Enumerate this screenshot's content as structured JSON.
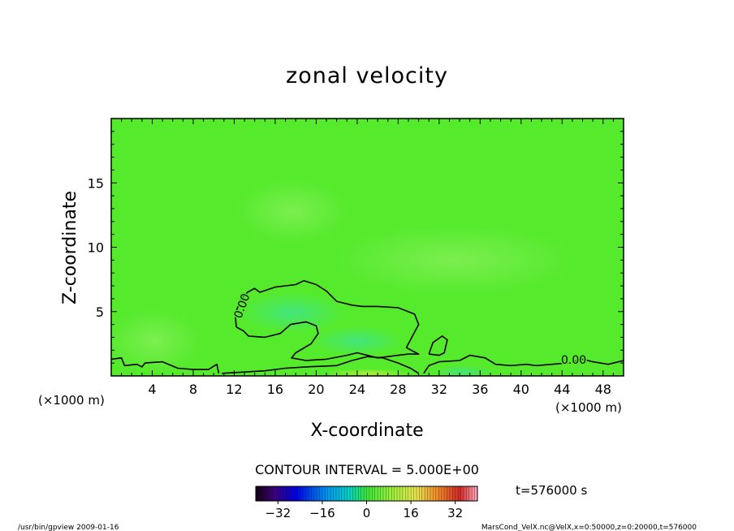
{
  "chart_data": {
    "type": "heatmap",
    "title": "zonal velocity",
    "xlabel": "X-coordinate",
    "ylabel": "Z-coordinate",
    "x_unit_label": "(×1000 m)",
    "xlim": [
      0,
      50
    ],
    "ylim": [
      0,
      20
    ],
    "x_ticks": [
      4,
      8,
      12,
      16,
      20,
      24,
      28,
      32,
      36,
      40,
      44,
      48
    ],
    "y_ticks": [
      5,
      10,
      15
    ],
    "contour_label": "0.00",
    "contour_interval_text": "CONTOUR INTERVAL = 5.000E+00",
    "colorbar": {
      "range": [
        -40,
        40
      ],
      "ticks": [
        -32,
        -16,
        0,
        16,
        32
      ]
    },
    "contour_zero": [
      [
        [
          0,
          1.3
        ],
        [
          1,
          1.4
        ],
        [
          1.3,
          0.8
        ],
        [
          2.5,
          0.9
        ],
        [
          3,
          0.7
        ],
        [
          3.3,
          1.0
        ],
        [
          5,
          1.1
        ],
        [
          6.5,
          0.6
        ],
        [
          8,
          0.5
        ],
        [
          9.5,
          0.5
        ],
        [
          10.3,
          0.9
        ],
        [
          10.5,
          0.2
        ]
      ],
      [
        [
          12.2,
          3.8
        ],
        [
          12.1,
          4.8
        ],
        [
          12.6,
          5.9
        ],
        [
          13.3,
          6.5
        ],
        [
          14,
          6.8
        ],
        [
          14.5,
          6.5
        ],
        [
          16,
          6.9
        ],
        [
          18,
          7.1
        ],
        [
          18.8,
          7.4
        ],
        [
          20,
          7.1
        ],
        [
          21,
          6.6
        ],
        [
          22,
          5.8
        ],
        [
          23.5,
          5.5
        ],
        [
          24.5,
          5.4
        ],
        [
          26,
          5.4
        ],
        [
          28,
          5.3
        ],
        [
          29.6,
          4.8
        ],
        [
          30,
          4.0
        ],
        [
          29.4,
          3.1
        ],
        [
          28.8,
          2.2
        ],
        [
          29.5,
          1.9
        ],
        [
          30,
          1.7
        ],
        [
          29,
          1.7
        ],
        [
          28,
          1.6
        ],
        [
          26,
          1.4
        ],
        [
          24,
          1.8
        ],
        [
          23,
          1.6
        ],
        [
          21,
          1.3
        ],
        [
          19,
          1.2
        ],
        [
          17.6,
          1.4
        ],
        [
          18,
          1.8
        ],
        [
          19.5,
          2.5
        ],
        [
          20.2,
          3.3
        ],
        [
          20,
          3.9
        ],
        [
          19,
          4.2
        ],
        [
          17.5,
          4.0
        ],
        [
          16.5,
          3.3
        ],
        [
          15,
          3.0
        ],
        [
          13.4,
          3.1
        ],
        [
          12.9,
          3.5
        ],
        [
          12.2,
          3.8
        ]
      ],
      [
        [
          31,
          1.7
        ],
        [
          31.4,
          2.6
        ],
        [
          32.3,
          3.1
        ],
        [
          32.8,
          2.8
        ],
        [
          32.5,
          1.8
        ],
        [
          32,
          1.6
        ],
        [
          31,
          1.7
        ]
      ],
      [
        [
          10.8,
          0.2
        ],
        [
          13,
          0.3
        ],
        [
          15,
          0.4
        ],
        [
          17,
          0.6
        ],
        [
          19,
          0.7
        ],
        [
          22,
          0.8
        ],
        [
          23.5,
          1.2
        ],
        [
          25,
          1.5
        ],
        [
          26.5,
          1.4
        ],
        [
          28,
          1.0
        ],
        [
          29.2,
          0.6
        ],
        [
          30,
          0.2
        ]
      ],
      [
        [
          30.5,
          0.2
        ],
        [
          31,
          0.8
        ],
        [
          32,
          1.1
        ],
        [
          34,
          1.2
        ],
        [
          35,
          1.6
        ],
        [
          36.5,
          1.4
        ],
        [
          37.5,
          0.9
        ],
        [
          39,
          0.8
        ],
        [
          40.5,
          0.9
        ],
        [
          41.5,
          0.8
        ],
        [
          43,
          0.9
        ],
        [
          44.5,
          1.0
        ],
        [
          46,
          1.3
        ],
        [
          47,
          1.1
        ],
        [
          48.5,
          0.9
        ],
        [
          50,
          1.2
        ]
      ]
    ]
  },
  "time_label": "t=576000 s",
  "footer": {
    "left": "/usr/bin/gpview   2009-01-16",
    "right": "MarsCond_VelX.nc@VelX,x=0:50000,z=0:20000,t=576000"
  }
}
